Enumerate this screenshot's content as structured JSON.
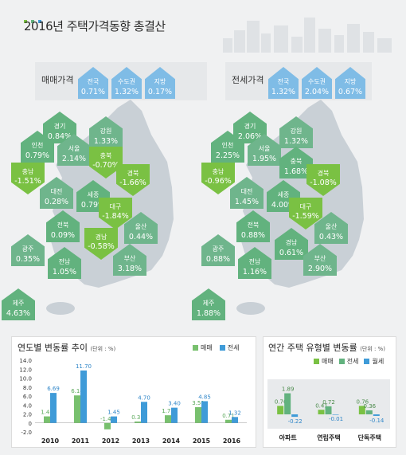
{
  "title": "2016년 주택가격동향 총결산",
  "colors": {
    "green": "#7ac143",
    "teal": "#62b27e",
    "blue": "#3f9bd8",
    "lightblue": "#7fbce6",
    "map": "#c9d0d6",
    "bar_sale": "#78c06e",
    "bar_jeonse": "#3f9bd8",
    "bar_monthly": "#3f9bd8"
  },
  "sale": {
    "label": "매매가격",
    "summary": [
      {
        "name": "전국",
        "value": "0.71%"
      },
      {
        "name": "수도권",
        "value": "1.32%"
      },
      {
        "name": "지방",
        "value": "0.17%"
      }
    ],
    "regions": [
      {
        "name": "경기",
        "value": "0.84%",
        "dir": "up"
      },
      {
        "name": "강원",
        "value": "1.33%",
        "dir": "up"
      },
      {
        "name": "인천",
        "value": "0.79%",
        "dir": "up"
      },
      {
        "name": "서울",
        "value": "2.14%",
        "dir": "up"
      },
      {
        "name": "충북",
        "value": "-0.70%",
        "dir": "down"
      },
      {
        "name": "충남",
        "value": "-1.51%",
        "dir": "down"
      },
      {
        "name": "경북",
        "value": "-1.66%",
        "dir": "down"
      },
      {
        "name": "대전",
        "value": "0.28%",
        "dir": "up"
      },
      {
        "name": "세종",
        "value": "0.79%",
        "dir": "up"
      },
      {
        "name": "대구",
        "value": "-1.84%",
        "dir": "down"
      },
      {
        "name": "전북",
        "value": "0.09%",
        "dir": "up"
      },
      {
        "name": "울산",
        "value": "0.44%",
        "dir": "up"
      },
      {
        "name": "경남",
        "value": "-0.58%",
        "dir": "down"
      },
      {
        "name": "광주",
        "value": "0.35%",
        "dir": "up"
      },
      {
        "name": "전남",
        "value": "1.05%",
        "dir": "up"
      },
      {
        "name": "부산",
        "value": "3.18%",
        "dir": "up"
      },
      {
        "name": "제주",
        "value": "4.63%",
        "dir": "up"
      }
    ]
  },
  "jeonse": {
    "label": "전세가격",
    "summary": [
      {
        "name": "전국",
        "value": "1.32%"
      },
      {
        "name": "수도권",
        "value": "2.04%"
      },
      {
        "name": "지방",
        "value": "0.67%"
      }
    ],
    "regions": [
      {
        "name": "경기",
        "value": "2.06%",
        "dir": "up"
      },
      {
        "name": "강원",
        "value": "1.32%",
        "dir": "up"
      },
      {
        "name": "인천",
        "value": "2.25%",
        "dir": "up"
      },
      {
        "name": "서울",
        "value": "1.95%",
        "dir": "up"
      },
      {
        "name": "충북",
        "value": "1.68%",
        "dir": "up"
      },
      {
        "name": "충남",
        "value": "-0.96%",
        "dir": "down"
      },
      {
        "name": "경북",
        "value": "-1.08%",
        "dir": "down"
      },
      {
        "name": "대전",
        "value": "1.45%",
        "dir": "up"
      },
      {
        "name": "세종",
        "value": "4.00%",
        "dir": "up"
      },
      {
        "name": "대구",
        "value": "-1.59%",
        "dir": "down"
      },
      {
        "name": "전북",
        "value": "0.88%",
        "dir": "up"
      },
      {
        "name": "울산",
        "value": "0.43%",
        "dir": "up"
      },
      {
        "name": "경남",
        "value": "0.61%",
        "dir": "up"
      },
      {
        "name": "광주",
        "value": "0.88%",
        "dir": "up"
      },
      {
        "name": "전남",
        "value": "1.16%",
        "dir": "up"
      },
      {
        "name": "부산",
        "value": "2.90%",
        "dir": "up"
      },
      {
        "name": "제주",
        "value": "1.88%",
        "dir": "up"
      }
    ]
  },
  "chart_data": [
    {
      "type": "bar",
      "title": "연도별 변동률 추이",
      "unit": "(단위 : %)",
      "categories": [
        "2010",
        "2011",
        "2012",
        "2013",
        "2014",
        "2015",
        "2016"
      ],
      "series": [
        {
          "name": "매매",
          "values": [
            1.46,
            6.14,
            -1.43,
            0.31,
            1.71,
            3.51,
            0.71
          ],
          "labels": [
            "1.46",
            "6.14",
            "-1.43",
            "0.31",
            "1.71",
            "3.51",
            "0.71"
          ]
        },
        {
          "name": "전세",
          "values": [
            6.69,
            11.7,
            1.45,
            4.7,
            3.4,
            4.85,
            1.32
          ],
          "labels": [
            "6.69",
            "11.70",
            "1.45",
            "4.70",
            "3.40",
            "4.85",
            "1.32"
          ]
        }
      ],
      "ylim": [
        -2.0,
        14.0
      ],
      "yticks": [
        "14.0",
        "12.0",
        "10.0",
        "8.0",
        "6.0",
        "4.0",
        "2.0",
        "0",
        "-2.0"
      ]
    },
    {
      "type": "bar",
      "title": "연간 주택 유형별 변동률",
      "unit": "(단위 : %)",
      "categories": [
        "아파트",
        "연립주택",
        "단독주택"
      ],
      "series": [
        {
          "name": "매매",
          "values": [
            0.76,
            0.41,
            0.76
          ],
          "labels": [
            "0.76",
            "0.41",
            "0.76"
          ]
        },
        {
          "name": "전세",
          "values": [
            1.89,
            0.72,
            0.36
          ],
          "labels": [
            "1.89",
            "0.72",
            "0.36"
          ]
        },
        {
          "name": "월세",
          "values": [
            -0.22,
            -0.01,
            -0.14
          ],
          "labels": [
            "-0.22",
            "-0.01",
            "-0.14"
          ]
        }
      ]
    }
  ]
}
